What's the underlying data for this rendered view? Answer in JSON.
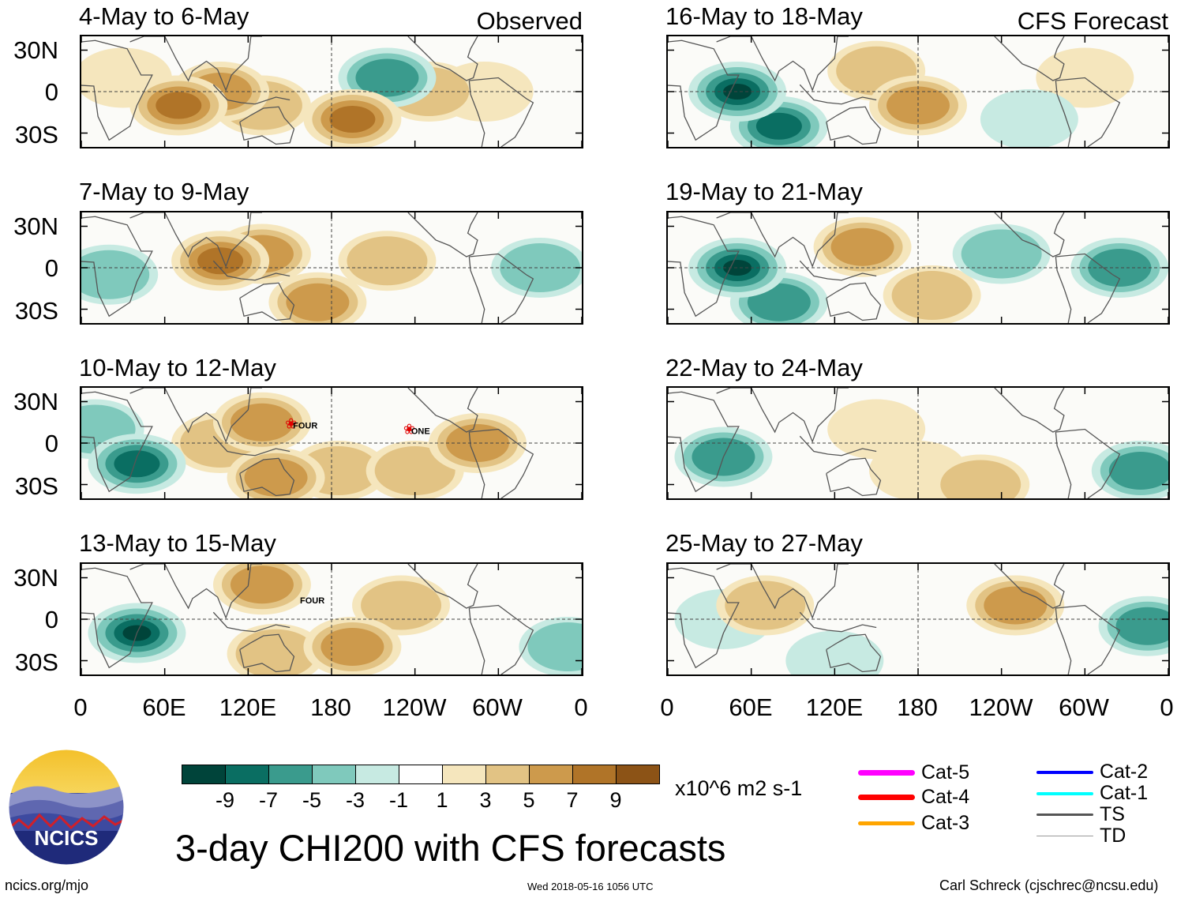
{
  "chart_data": {
    "type": "heatmap",
    "title": "3-day CHI200 with CFS forecasts",
    "variable": "CHI200",
    "units": "x10^6 m2 s-1",
    "colorbar": {
      "ticks": [
        "-9",
        "-7",
        "-5",
        "-3",
        "-1",
        "1",
        "3",
        "5",
        "7",
        "9"
      ],
      "levels": [
        -11,
        -9,
        -7,
        -5,
        -3,
        -1,
        1,
        3,
        5,
        7,
        9,
        11
      ],
      "colors": [
        "#00443a",
        "#0a6e62",
        "#3a9b8d",
        "#7fc9bc",
        "#c7eae2",
        "#ffffff",
        "#f5e6bd",
        "#e2c384",
        "#cd9a4c",
        "#b07428",
        "#8c5316"
      ]
    },
    "latitude_ticks": [
      "30N",
      "0",
      "30S"
    ],
    "longitude_ticks": [
      "0",
      "60E",
      "120E",
      "180",
      "120W",
      "60W",
      "0"
    ],
    "column_labels": {
      "left": "Observed",
      "right": "CFS Forecast"
    },
    "panels": [
      {
        "title": "4-May to 6-May",
        "column": "left",
        "row": 1,
        "source": "Observed",
        "features": [
          {
            "lon": 70,
            "lat": -10,
            "value": 9
          },
          {
            "lon": 100,
            "lat": 0,
            "value": 7
          },
          {
            "lon": 130,
            "lat": -10,
            "value": 5
          },
          {
            "lon": 195,
            "lat": -20,
            "value": 9
          },
          {
            "lon": 220,
            "lat": 10,
            "value": -7
          },
          {
            "lon": 250,
            "lat": 0,
            "value": 5
          },
          {
            "lon": 30,
            "lat": 10,
            "value": 3
          },
          {
            "lon": 290,
            "lat": 0,
            "value": 3
          }
        ]
      },
      {
        "title": "7-May to 9-May",
        "column": "left",
        "row": 2,
        "source": "Observed",
        "features": [
          {
            "lon": 100,
            "lat": 5,
            "value": 9
          },
          {
            "lon": 130,
            "lat": 10,
            "value": 7
          },
          {
            "lon": 170,
            "lat": -25,
            "value": 7
          },
          {
            "lon": 220,
            "lat": 5,
            "value": 5
          },
          {
            "lon": 20,
            "lat": -5,
            "value": -5
          },
          {
            "lon": 330,
            "lat": 0,
            "value": -5
          }
        ]
      },
      {
        "title": "10-May to 12-May",
        "column": "left",
        "row": 3,
        "source": "Observed",
        "storms": [
          {
            "name": "FOUR",
            "lon": 150,
            "lat": 14
          },
          {
            "name": "ONE",
            "lon": 235,
            "lat": 10
          }
        ],
        "features": [
          {
            "lon": 130,
            "lat": 15,
            "value": 7
          },
          {
            "lon": 100,
            "lat": 0,
            "value": 5
          },
          {
            "lon": 140,
            "lat": -25,
            "value": 7
          },
          {
            "lon": 185,
            "lat": -20,
            "value": 5
          },
          {
            "lon": 240,
            "lat": -20,
            "value": 5
          },
          {
            "lon": 285,
            "lat": 0,
            "value": 7
          },
          {
            "lon": 40,
            "lat": -15,
            "value": -9
          },
          {
            "lon": 10,
            "lat": 10,
            "value": -5
          }
        ]
      },
      {
        "title": "13-May to 15-May",
        "column": "left",
        "row": 4,
        "source": "Observed",
        "storms": [
          {
            "name": "FOUR",
            "lon": 155,
            "lat": 15
          }
        ],
        "features": [
          {
            "lon": 40,
            "lat": -10,
            "value": -11
          },
          {
            "lon": 130,
            "lat": 25,
            "value": 7
          },
          {
            "lon": 195,
            "lat": -20,
            "value": 7
          },
          {
            "lon": 230,
            "lat": 10,
            "value": 5
          },
          {
            "lon": 140,
            "lat": -25,
            "value": 5
          },
          {
            "lon": 350,
            "lat": -20,
            "value": -5
          }
        ]
      },
      {
        "title": "16-May to 18-May",
        "column": "right",
        "row": 1,
        "source": "CFS Forecast",
        "features": [
          {
            "lon": 50,
            "lat": 0,
            "value": -11
          },
          {
            "lon": 80,
            "lat": -25,
            "value": -9
          },
          {
            "lon": 150,
            "lat": 15,
            "value": 5
          },
          {
            "lon": 180,
            "lat": -10,
            "value": 7
          },
          {
            "lon": 300,
            "lat": 10,
            "value": 3
          },
          {
            "lon": 260,
            "lat": -20,
            "value": -3
          }
        ]
      },
      {
        "title": "19-May to 21-May",
        "column": "right",
        "row": 2,
        "source": "CFS Forecast",
        "features": [
          {
            "lon": 50,
            "lat": 0,
            "value": -11
          },
          {
            "lon": 80,
            "lat": -25,
            "value": -7
          },
          {
            "lon": 140,
            "lat": 15,
            "value": 7
          },
          {
            "lon": 190,
            "lat": -20,
            "value": 5
          },
          {
            "lon": 240,
            "lat": 10,
            "value": -5
          },
          {
            "lon": 325,
            "lat": 0,
            "value": -7
          }
        ]
      },
      {
        "title": "22-May to 24-May",
        "column": "right",
        "row": 3,
        "source": "CFS Forecast",
        "features": [
          {
            "lon": 40,
            "lat": -10,
            "value": -7
          },
          {
            "lon": 150,
            "lat": 10,
            "value": 3
          },
          {
            "lon": 180,
            "lat": -20,
            "value": 3
          },
          {
            "lon": 225,
            "lat": -30,
            "value": 5
          },
          {
            "lon": 340,
            "lat": -20,
            "value": -7
          }
        ]
      },
      {
        "title": "25-May to 27-May",
        "column": "right",
        "row": 4,
        "source": "CFS Forecast",
        "features": [
          {
            "lon": 70,
            "lat": 10,
            "value": 5
          },
          {
            "lon": 250,
            "lat": 10,
            "value": 7
          },
          {
            "lon": 40,
            "lat": 0,
            "value": -3
          },
          {
            "lon": 345,
            "lat": -5,
            "value": -7
          },
          {
            "lon": 120,
            "lat": -30,
            "value": -3
          }
        ]
      }
    ]
  },
  "legend": {
    "items": [
      {
        "label": "Cat-5",
        "color": "#ff00ff"
      },
      {
        "label": "Cat-4",
        "color": "#ff0000"
      },
      {
        "label": "Cat-3",
        "color": "#ffa500"
      },
      {
        "label": "Cat-2",
        "color": "#0000ff"
      },
      {
        "label": "Cat-1",
        "color": "#00ffff"
      },
      {
        "label": "TS",
        "color": "#555555"
      },
      {
        "label": "TD",
        "color": "#999999"
      }
    ]
  },
  "logo": {
    "text": "NCICS"
  },
  "footer": {
    "url": "ncics.org/mjo",
    "timestamp": "Wed 2018-05-16 1056 UTC",
    "credit": "Carl Schreck (cjschrec@ncsu.edu)"
  }
}
